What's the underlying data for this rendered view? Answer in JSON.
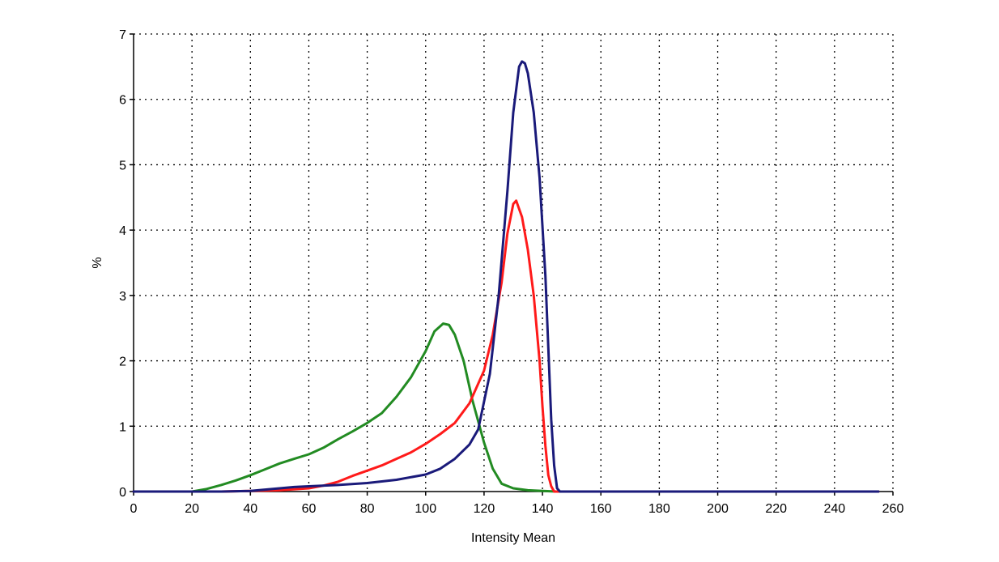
{
  "chart_data": {
    "type": "line",
    "title": "",
    "xlabel": "Intensity Mean",
    "ylabel": "%",
    "xlim": [
      0,
      260
    ],
    "ylim": [
      0,
      7
    ],
    "xticks": [
      0,
      20,
      40,
      60,
      80,
      100,
      120,
      140,
      160,
      180,
      200,
      220,
      240,
      260
    ],
    "yticks": [
      0,
      1,
      2,
      3,
      4,
      5,
      6,
      7
    ],
    "grid": true,
    "legend": "none",
    "series": [
      {
        "color": "#228B22",
        "x": [
          0,
          20,
          25,
          30,
          35,
          40,
          45,
          50,
          55,
          60,
          65,
          70,
          75,
          80,
          85,
          90,
          95,
          100,
          103,
          106,
          108,
          110,
          113,
          116,
          120,
          123,
          126,
          130,
          135,
          140,
          145,
          255
        ],
        "y": [
          0,
          0,
          0.04,
          0.1,
          0.17,
          0.25,
          0.34,
          0.43,
          0.5,
          0.57,
          0.67,
          0.8,
          0.92,
          1.05,
          1.2,
          1.45,
          1.75,
          2.15,
          2.45,
          2.57,
          2.55,
          2.4,
          2.0,
          1.4,
          0.75,
          0.35,
          0.12,
          0.05,
          0.02,
          0.01,
          0,
          0
        ]
      },
      {
        "color": "#ff1a1a",
        "x": [
          0,
          30,
          40,
          50,
          60,
          65,
          70,
          75,
          80,
          85,
          90,
          95,
          100,
          105,
          110,
          115,
          120,
          123,
          126,
          128,
          130,
          131,
          133,
          135,
          137,
          139,
          140,
          141,
          142,
          143,
          144,
          255
        ],
        "y": [
          0,
          0,
          0.01,
          0.02,
          0.05,
          0.09,
          0.15,
          0.24,
          0.32,
          0.4,
          0.5,
          0.6,
          0.73,
          0.88,
          1.05,
          1.35,
          1.85,
          2.4,
          3.2,
          3.95,
          4.4,
          4.45,
          4.2,
          3.7,
          3.0,
          2.0,
          1.3,
          0.7,
          0.25,
          0.08,
          0,
          0
        ]
      },
      {
        "color": "#1a1a7a",
        "x": [
          0,
          30,
          40,
          45,
          50,
          55,
          60,
          70,
          80,
          90,
          100,
          105,
          110,
          115,
          118,
          122,
          125,
          128,
          130,
          132,
          133,
          134,
          135,
          137,
          139,
          141,
          142,
          143,
          144,
          145,
          146,
          255
        ],
        "y": [
          0,
          0,
          0.01,
          0.03,
          0.05,
          0.07,
          0.08,
          0.1,
          0.13,
          0.18,
          0.26,
          0.35,
          0.5,
          0.72,
          0.95,
          1.8,
          3.0,
          4.6,
          5.8,
          6.5,
          6.58,
          6.55,
          6.4,
          5.8,
          4.8,
          3.3,
          2.2,
          1.1,
          0.4,
          0.05,
          0,
          0
        ]
      }
    ]
  }
}
